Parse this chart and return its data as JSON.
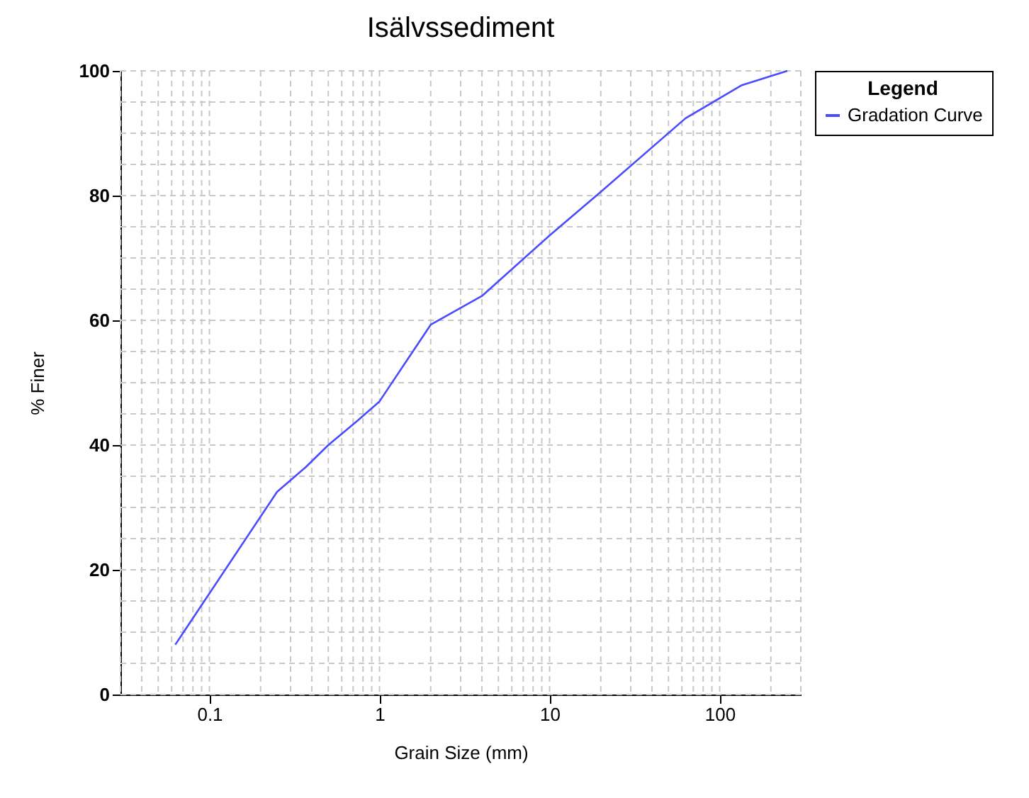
{
  "chart_data": {
    "type": "line",
    "title": "Isälvssediment",
    "xlabel": "Grain Size (mm)",
    "ylabel": "% Finer",
    "log": "x",
    "xlim": [
      0.03,
      300
    ],
    "xticks": [
      0.1,
      1,
      10,
      100
    ],
    "ylim": [
      0,
      100
    ],
    "yticks": [
      0,
      20,
      40,
      60,
      80,
      100
    ],
    "grid": true,
    "legend": "top right",
    "legend_title": "Legend",
    "series": [
      {
        "name": "Gradation Curve",
        "color": "#4b4bff",
        "x": [
          0.063,
          0.25,
          0.37,
          0.5,
          0.75,
          1,
          2,
          4,
          10,
          20,
          63,
          135,
          250
        ],
        "values": [
          8,
          32.5,
          36.5,
          40,
          44,
          47,
          59.3,
          63.9,
          73.6,
          80.6,
          92.4,
          97.7,
          100
        ]
      }
    ]
  }
}
